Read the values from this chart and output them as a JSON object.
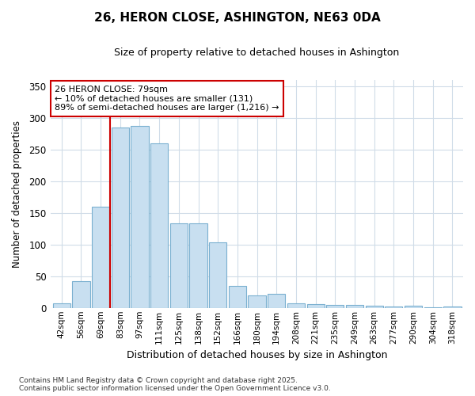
{
  "title": "26, HERON CLOSE, ASHINGTON, NE63 0DA",
  "subtitle": "Size of property relative to detached houses in Ashington",
  "xlabel": "Distribution of detached houses by size in Ashington",
  "ylabel": "Number of detached properties",
  "categories": [
    "42sqm",
    "56sqm",
    "69sqm",
    "83sqm",
    "97sqm",
    "111sqm",
    "125sqm",
    "138sqm",
    "152sqm",
    "166sqm",
    "180sqm",
    "194sqm",
    "208sqm",
    "221sqm",
    "235sqm",
    "249sqm",
    "263sqm",
    "277sqm",
    "290sqm",
    "304sqm",
    "318sqm"
  ],
  "values": [
    7,
    42,
    160,
    285,
    287,
    260,
    133,
    133,
    103,
    35,
    20,
    22,
    7,
    6,
    5,
    5,
    4,
    2,
    4,
    1,
    2
  ],
  "bar_color": "#c8dff0",
  "bar_edgecolor": "#7ab0d0",
  "vline_x": 2.5,
  "vline_color": "#cc0000",
  "annotation_text": "26 HERON CLOSE: 79sqm\n← 10% of detached houses are smaller (131)\n89% of semi-detached houses are larger (1,216) →",
  "annotation_box_color": "#cc0000",
  "ylim": [
    0,
    360
  ],
  "yticks": [
    0,
    50,
    100,
    150,
    200,
    250,
    300,
    350
  ],
  "background_color": "#ffffff",
  "grid_color": "#d0dce8",
  "footer": "Contains HM Land Registry data © Crown copyright and database right 2025.\nContains public sector information licensed under the Open Government Licence v3.0."
}
